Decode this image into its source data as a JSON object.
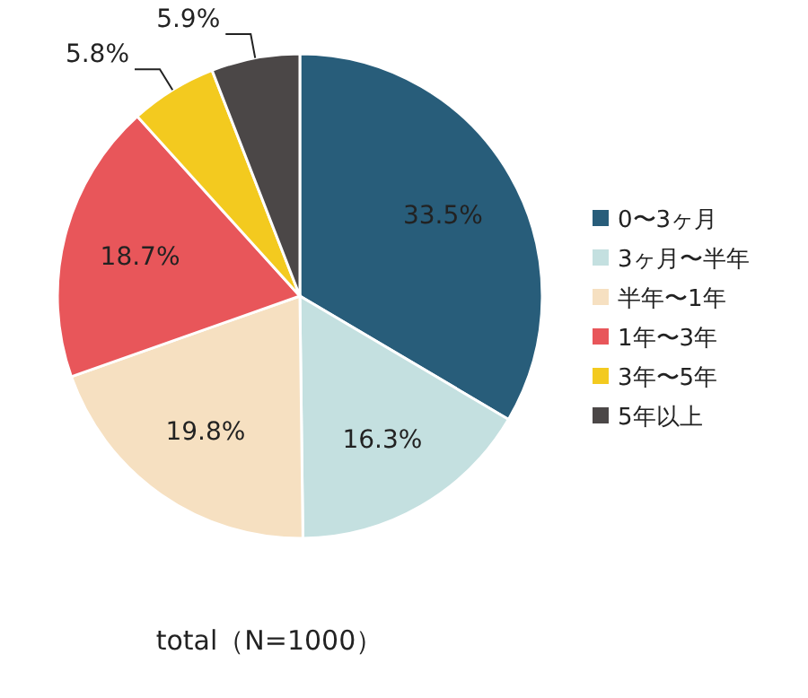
{
  "chart_data": {
    "type": "pie",
    "title": "total（N=1000）",
    "categories": [
      "0〜3ヶ月",
      "3ヶ月〜半年",
      "半年〜1年",
      "1年〜3年",
      "3年〜5年",
      "5年以上"
    ],
    "values": [
      33.5,
      16.3,
      19.8,
      18.7,
      5.8,
      5.9
    ],
    "value_labels": [
      "33.5%",
      "16.3%",
      "19.8%",
      "18.7%",
      "5.8%",
      "5.9%"
    ],
    "colors": [
      "#285d7a",
      "#c4e0e0",
      "#f6e0c1",
      "#e8565a",
      "#f3ca1f",
      "#4b4747"
    ],
    "legend": "right"
  }
}
